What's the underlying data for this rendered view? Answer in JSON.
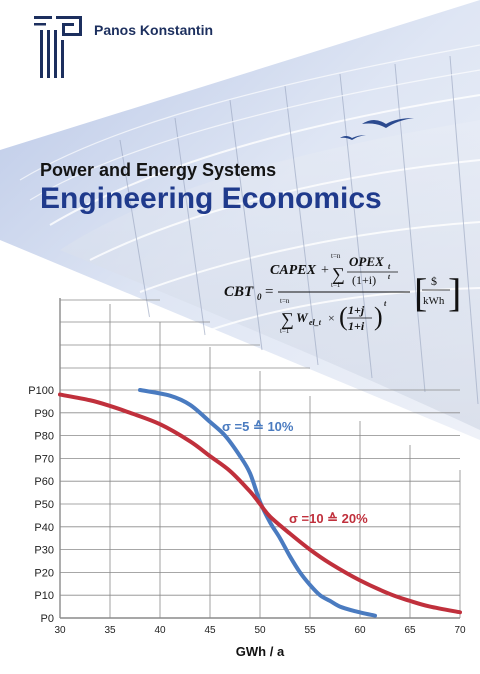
{
  "publisher": {
    "name": "Panos Konstantin",
    "logo": "greek-key-column-logo"
  },
  "series_title": "Power and Energy Systems",
  "book_title": "Engineering Economics",
  "formula": {
    "lhs": "CBT",
    "lhs_sub": "0",
    "capex": "CAPEX",
    "opex": "OPEX",
    "opex_sub": "t",
    "sum_top": "t=n",
    "sum_bottom": "t=1",
    "discount": "(1+i)",
    "exp_t": "t",
    "w_el": "W",
    "w_sub": "el_t",
    "j_term": "1+j",
    "i_term": "1+i",
    "unit_num": "$",
    "unit_den": "kWh"
  },
  "colors": {
    "title_blue": "#1f3a8c",
    "curve_blue": "#4a7bc0",
    "curve_red": "#c0303c",
    "bird": "#2b4a8f",
    "sky": "#c9d7ec"
  },
  "chart_data": {
    "type": "line",
    "xlabel": "GWh / a",
    "ylabel": "",
    "xlim": [
      30,
      70
    ],
    "ylim": [
      0,
      100
    ],
    "x_ticks": [
      30,
      35,
      40,
      45,
      50,
      55,
      60,
      65,
      70
    ],
    "y_ticks": [
      "P0",
      "P10",
      "P20",
      "P30",
      "P40",
      "P50",
      "P60",
      "P70",
      "P80",
      "P90",
      "P100"
    ],
    "grid": "stepped",
    "series": [
      {
        "name": "σ =5 ≙ 10%",
        "color": "#4a7bc0",
        "x": [
          38,
          41,
          43,
          45,
          46.5,
          48,
          49,
          50,
          51,
          52,
          53,
          54,
          55,
          56,
          57,
          58,
          59.5,
          61.5
        ],
        "y": [
          100,
          97.5,
          93.5,
          86,
          80,
          71,
          63.5,
          51,
          42,
          35,
          27,
          20,
          14.5,
          10,
          7.5,
          5,
          3,
          1
        ]
      },
      {
        "name": "σ =10 ≙ 20%",
        "color": "#c0303c",
        "x": [
          30,
          33,
          35,
          37,
          40,
          43,
          45,
          47,
          49,
          50,
          51,
          53,
          55,
          57,
          60,
          63,
          65,
          67,
          70
        ],
        "y": [
          98,
          95.5,
          93,
          90,
          85,
          77.5,
          71,
          64.5,
          55.5,
          50,
          44.5,
          37,
          30,
          24,
          16.5,
          10.5,
          7.5,
          5,
          2.5
        ]
      }
    ]
  }
}
